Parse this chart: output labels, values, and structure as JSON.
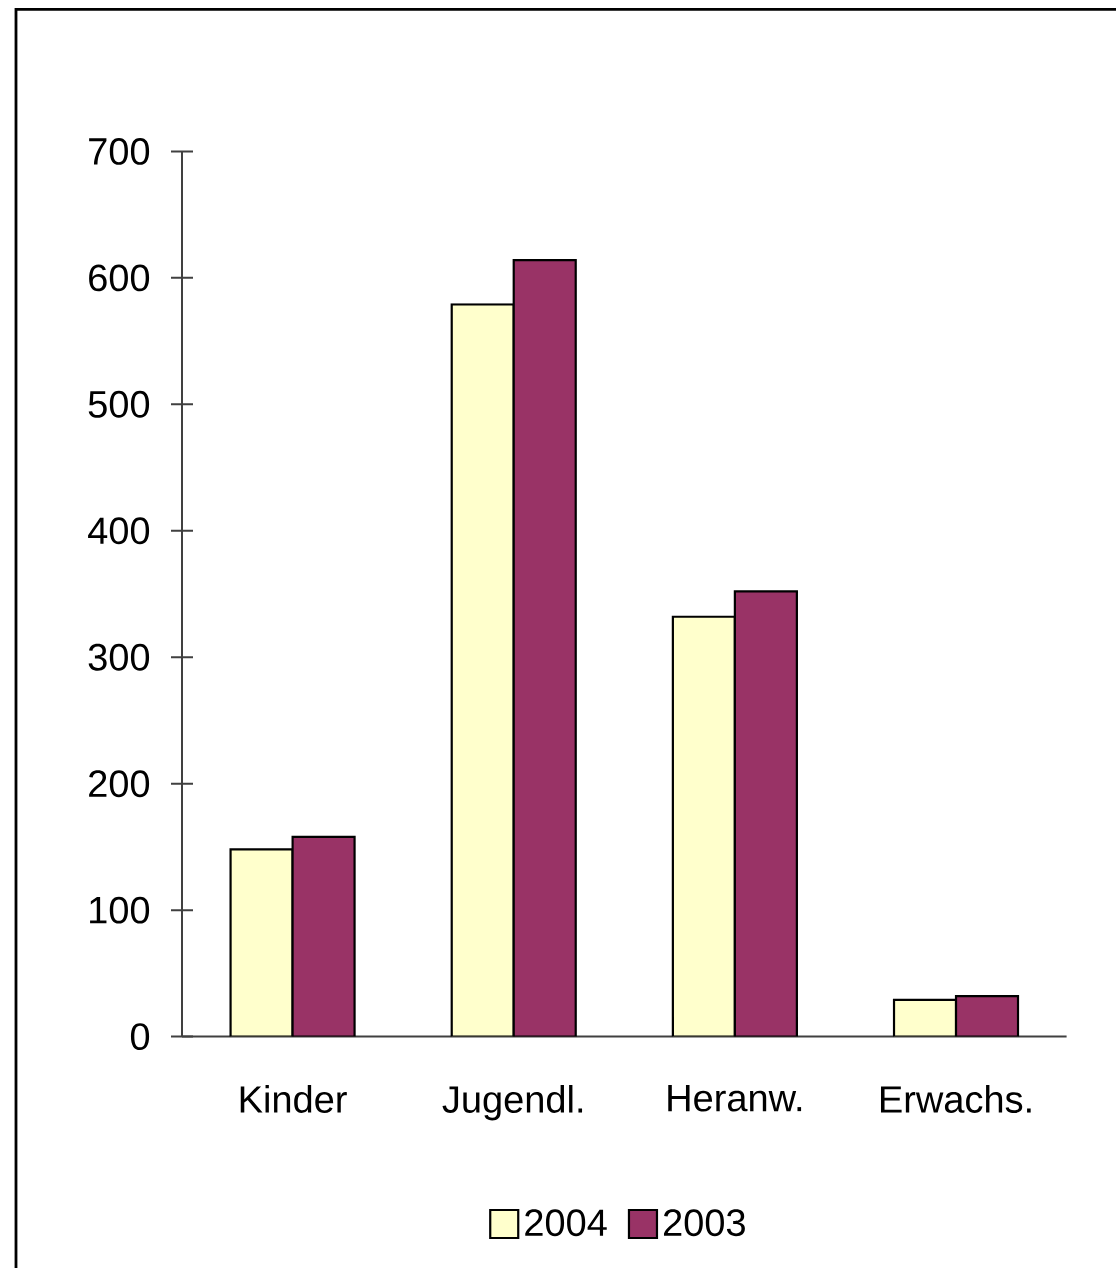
{
  "chart_data": {
    "type": "bar",
    "categories": [
      "Kinder",
      "Jugendl.",
      "Heranw.",
      "Erwachs."
    ],
    "series": [
      {
        "name": "2004",
        "color": "#ffffcc",
        "values": [
          148,
          579,
          332,
          29
        ]
      },
      {
        "name": "2003",
        "color": "#993366",
        "values": [
          158,
          614,
          352,
          32
        ]
      }
    ],
    "ylim": [
      0,
      700
    ],
    "yticks": [
      0,
      100,
      200,
      300,
      400,
      500,
      600,
      700
    ],
    "legend": "bottom"
  }
}
